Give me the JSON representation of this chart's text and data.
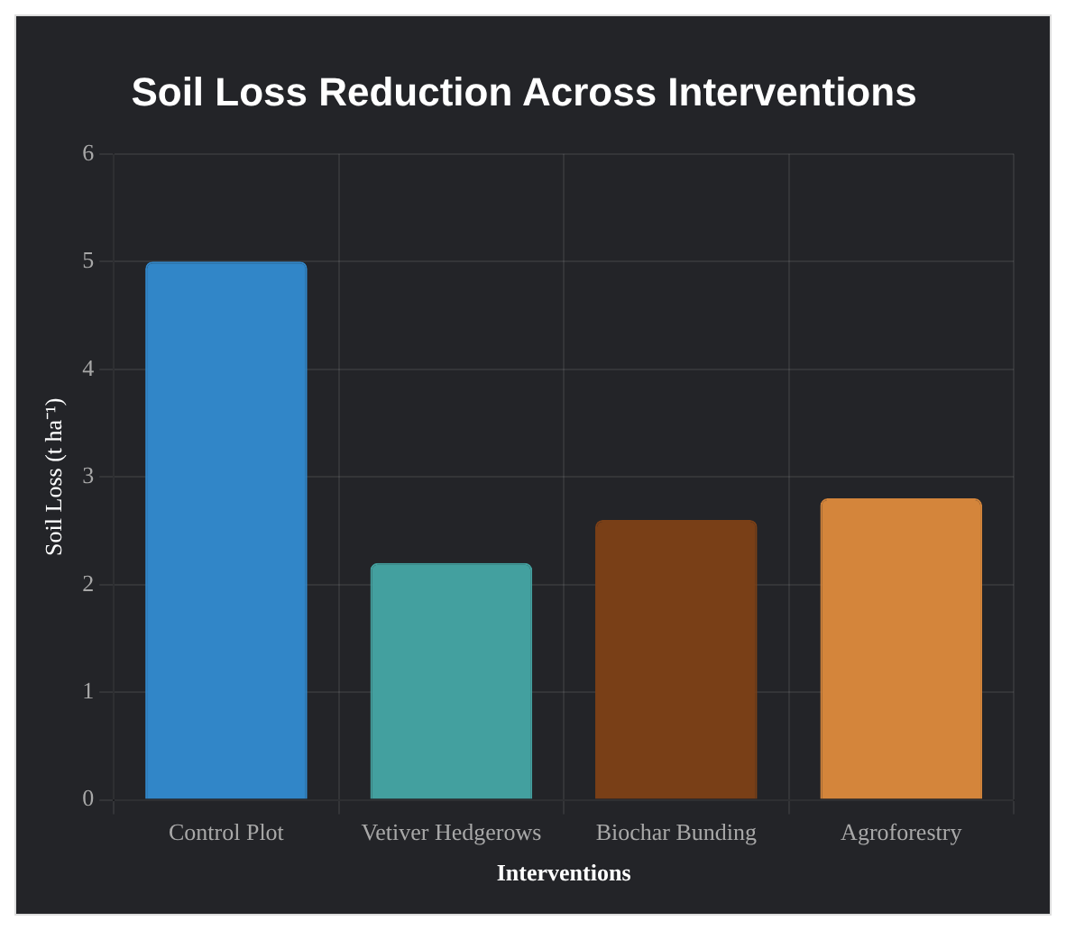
{
  "chart_data": {
    "type": "bar",
    "title": "Soil Loss Reduction Across Interventions",
    "xlabel": "Interventions",
    "ylabel": "Soil Loss (t ha⁻¹)",
    "categories": [
      "Control Plot",
      "Vetiver Hedgerows",
      "Biochar Bunding",
      "Agroforestry"
    ],
    "values": [
      5.0,
      2.2,
      2.6,
      2.8
    ],
    "colors": [
      "#3186c8",
      "#43a09f",
      "#793f17",
      "#d4853b"
    ],
    "ylim": [
      0,
      6
    ],
    "yticks": [
      0,
      1,
      2,
      3,
      4,
      5,
      6
    ],
    "grid": true
  }
}
